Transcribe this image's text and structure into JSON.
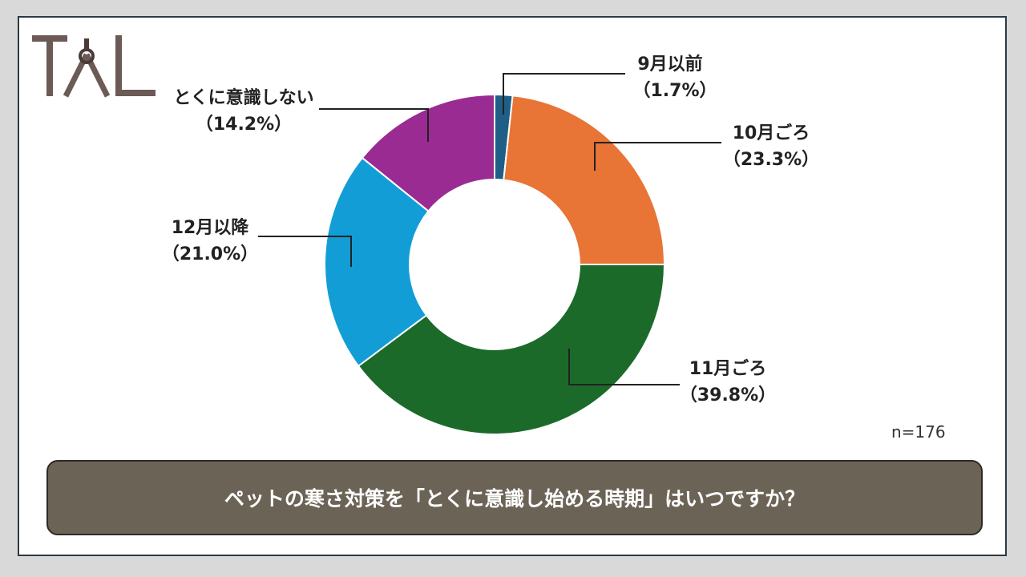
{
  "brand": {
    "logo_text": "TAL",
    "colors": {
      "letters": "#6b5a56",
      "accent": "#4a3a38"
    }
  },
  "chart_data": {
    "type": "pie",
    "style": "donut",
    "categories": [
      "9月以前",
      "10月ごろ",
      "11月ごろ",
      "12月以降",
      "とくに意識しない"
    ],
    "values": [
      1.7,
      23.3,
      39.8,
      21.0,
      14.2
    ],
    "value_labels": [
      "（1.7%）",
      "（23.3%）",
      "（39.8%）",
      "（21.0%）",
      "（14.2%）"
    ],
    "colors": [
      "#1f5f86",
      "#e87435",
      "#1b6a2a",
      "#129dd6",
      "#9a2b92"
    ],
    "start_angle": "12 o'clock",
    "direction": "clockwise",
    "sample_size": "n=176"
  },
  "question": "ペットの寒さ対策を「とくに意識し始める時期」はいつですか？"
}
